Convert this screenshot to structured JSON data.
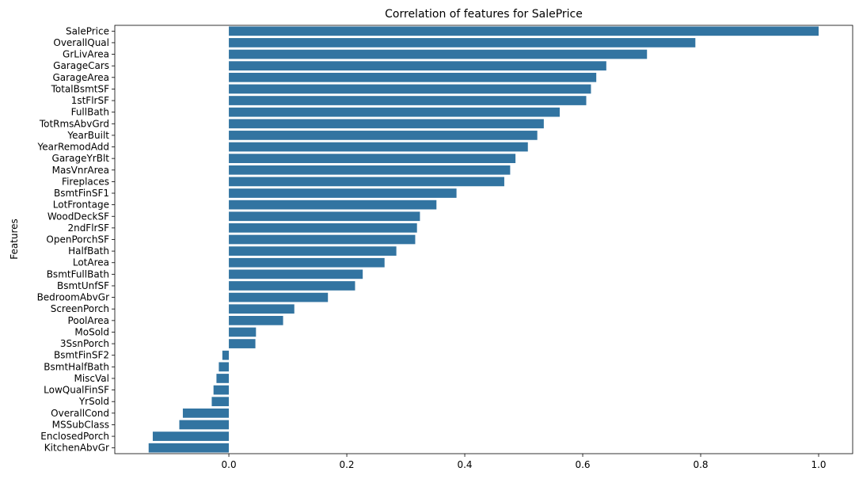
{
  "chart_data": {
    "type": "bar",
    "orientation": "horizontal",
    "title": "Correlation of features for SalePrice",
    "xlabel": "",
    "ylabel": "Features",
    "bar_color": "#3274a1",
    "xlim": [
      -0.135,
      1.0
    ],
    "xticks": [
      0.0,
      0.2,
      0.4,
      0.6,
      0.8,
      1.0
    ],
    "xtick_labels": [
      "0.0",
      "0.2",
      "0.4",
      "0.6",
      "0.8",
      "1.0"
    ],
    "grid": false,
    "categories": [
      "SalePrice",
      "OverallQual",
      "GrLivArea",
      "GarageCars",
      "GarageArea",
      "TotalBsmtSF",
      "1stFlrSF",
      "FullBath",
      "TotRmsAbvGrd",
      "YearBuilt",
      "YearRemodAdd",
      "GarageYrBlt",
      "MasVnrArea",
      "Fireplaces",
      "BsmtFinSF1",
      "LotFrontage",
      "WoodDeckSF",
      "2ndFlrSF",
      "OpenPorchSF",
      "HalfBath",
      "LotArea",
      "BsmtFullBath",
      "BsmtUnfSF",
      "BedroomAbvGr",
      "ScreenPorch",
      "PoolArea",
      "MoSold",
      "3SsnPorch",
      "BsmtFinSF2",
      "BsmtHalfBath",
      "MiscVal",
      "LowQualFinSF",
      "YrSold",
      "OverallCond",
      "MSSubClass",
      "EnclosedPorch",
      "KitchenAbvGr"
    ],
    "values": [
      1.0,
      0.791,
      0.709,
      0.64,
      0.623,
      0.614,
      0.606,
      0.561,
      0.534,
      0.523,
      0.507,
      0.486,
      0.477,
      0.467,
      0.386,
      0.352,
      0.324,
      0.319,
      0.316,
      0.284,
      0.264,
      0.227,
      0.214,
      0.168,
      0.111,
      0.092,
      0.046,
      0.045,
      -0.011,
      -0.017,
      -0.021,
      -0.026,
      -0.029,
      -0.078,
      -0.084,
      -0.129,
      -0.136
    ]
  }
}
